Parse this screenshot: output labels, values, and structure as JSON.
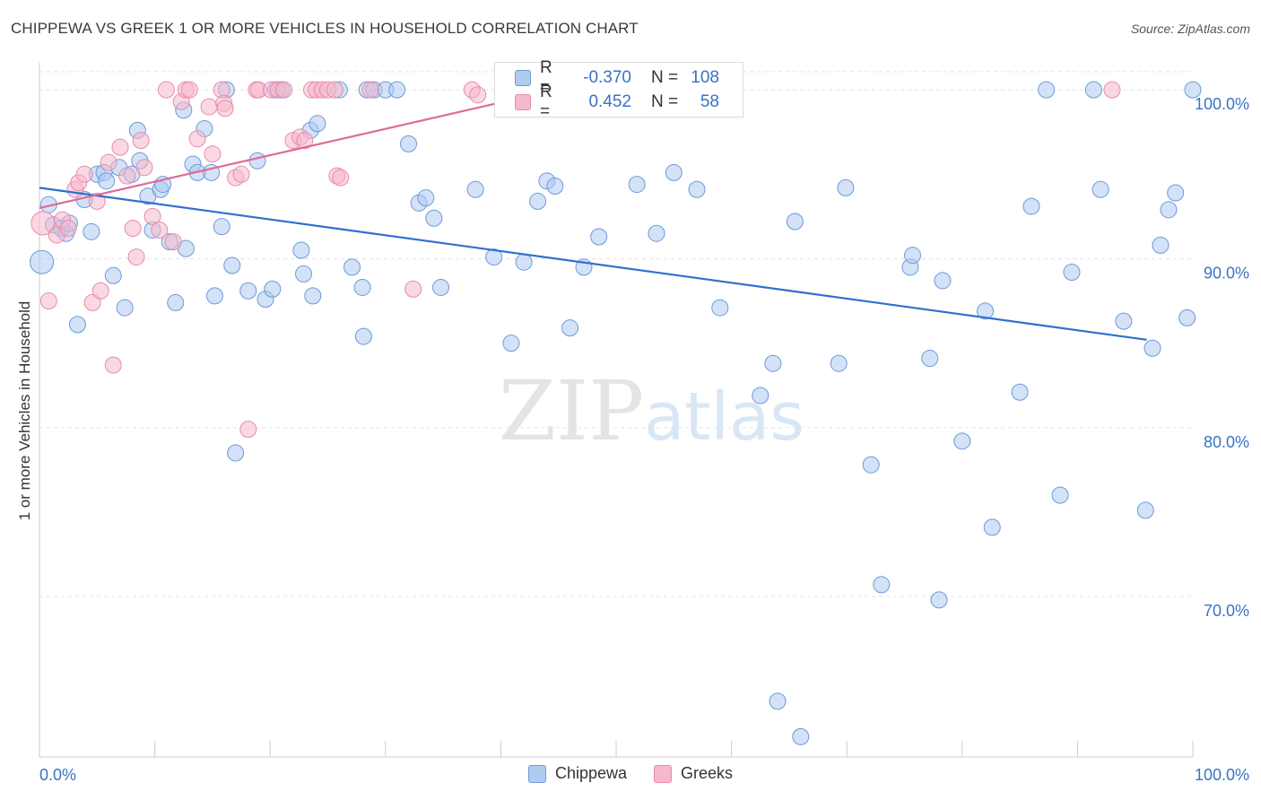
{
  "title": "CHIPPEWA VS GREEK 1 OR MORE VEHICLES IN HOUSEHOLD CORRELATION CHART",
  "source": "Source: ZipAtlas.com",
  "watermark": {
    "zip": "ZIP",
    "atlas": "atlas"
  },
  "colors": {
    "chippewa_fill": "#aecbf0",
    "chippewa_stroke": "#6b9ad8",
    "chippewa_line": "#2f6fd0",
    "greeks_fill": "#f5b8cc",
    "greeks_stroke": "#e88aab",
    "greeks_line": "#e06a95",
    "tick_label": "#3a72c4",
    "grid": "#e3e3e3"
  },
  "legend": {
    "rows": [
      {
        "r_label": "R =",
        "r_value": "-0.370",
        "n_label": "N =",
        "n_value": "108"
      },
      {
        "r_label": "R =",
        "r_value": "0.452",
        "n_label": "N =",
        "n_value": "58"
      }
    ]
  },
  "bottom_legend": [
    "Chippewa",
    "Greeks"
  ],
  "chart_data": {
    "type": "scatter",
    "title": "CHIPPEWA VS GREEK 1 OR MORE VEHICLES IN HOUSEHOLD CORRELATION CHART",
    "xlabel": "",
    "ylabel": "1 or more Vehicles in Household",
    "xlim": [
      0,
      100
    ],
    "ylim": [
      60.5,
      101.6
    ],
    "x_tick_labels": [
      "0.0%",
      "100.0%"
    ],
    "y_ticks": [
      70,
      80,
      90,
      100
    ],
    "y_tick_labels": [
      "70.0%",
      "80.0%",
      "90.0%",
      "100.0%"
    ],
    "grid": true,
    "legend_position": "top-center",
    "series": [
      {
        "name": "Chippewa",
        "trend": [
          [
            0,
            94.2
          ],
          [
            96,
            85.2
          ]
        ],
        "points": [
          [
            0.2,
            89.8
          ],
          [
            0.8,
            93.2
          ],
          [
            1.2,
            92.0
          ],
          [
            1.9,
            91.8
          ],
          [
            2.3,
            91.5
          ],
          [
            2.6,
            92.1
          ],
          [
            3.3,
            86.1
          ],
          [
            3.9,
            93.5
          ],
          [
            4.5,
            91.6
          ],
          [
            5.0,
            95.0
          ],
          [
            5.6,
            95.1
          ],
          [
            5.8,
            94.6
          ],
          [
            6.4,
            89.0
          ],
          [
            6.9,
            95.4
          ],
          [
            7.4,
            87.1
          ],
          [
            8.0,
            95.0
          ],
          [
            8.5,
            97.6
          ],
          [
            8.7,
            95.8
          ],
          [
            9.4,
            93.7
          ],
          [
            9.8,
            91.7
          ],
          [
            10.5,
            94.1
          ],
          [
            10.7,
            94.4
          ],
          [
            11.3,
            91.0
          ],
          [
            11.8,
            87.4
          ],
          [
            12.5,
            98.8
          ],
          [
            12.7,
            90.6
          ],
          [
            13.3,
            95.6
          ],
          [
            13.7,
            95.1
          ],
          [
            14.3,
            97.7
          ],
          [
            14.9,
            95.1
          ],
          [
            15.2,
            87.8
          ],
          [
            15.8,
            91.9
          ],
          [
            16.2,
            100.0
          ],
          [
            16.7,
            89.6
          ],
          [
            17.0,
            78.5
          ],
          [
            18.1,
            88.1
          ],
          [
            18.9,
            95.8
          ],
          [
            19.6,
            87.6
          ],
          [
            20.2,
            88.2
          ],
          [
            20.5,
            100.0
          ],
          [
            21.0,
            100.0
          ],
          [
            22.7,
            90.5
          ],
          [
            22.9,
            89.1
          ],
          [
            23.5,
            97.6
          ],
          [
            23.7,
            87.8
          ],
          [
            24.1,
            98.0
          ],
          [
            26.0,
            100.0
          ],
          [
            27.1,
            89.5
          ],
          [
            28.0,
            88.3
          ],
          [
            28.1,
            85.4
          ],
          [
            28.4,
            100.0
          ],
          [
            29.0,
            100.0
          ],
          [
            30.0,
            100.0
          ],
          [
            31.0,
            100.0
          ],
          [
            32.0,
            96.8
          ],
          [
            32.9,
            93.3
          ],
          [
            33.5,
            93.6
          ],
          [
            34.2,
            92.4
          ],
          [
            34.8,
            88.3
          ],
          [
            37.8,
            94.1
          ],
          [
            39.4,
            90.1
          ],
          [
            40.9,
            85.0
          ],
          [
            42.0,
            89.8
          ],
          [
            43.2,
            93.4
          ],
          [
            44.0,
            94.6
          ],
          [
            44.7,
            94.3
          ],
          [
            45.2,
            100.0
          ],
          [
            46.0,
            85.9
          ],
          [
            47.2,
            89.5
          ],
          [
            48.5,
            91.3
          ],
          [
            50.0,
            100.0
          ],
          [
            51.8,
            94.4
          ],
          [
            53.5,
            91.5
          ],
          [
            55.0,
            95.1
          ],
          [
            57.0,
            94.1
          ],
          [
            59.0,
            87.1
          ],
          [
            62.5,
            81.9
          ],
          [
            63.6,
            83.8
          ],
          [
            64.0,
            63.8
          ],
          [
            65.5,
            92.2
          ],
          [
            66.0,
            61.7
          ],
          [
            69.3,
            83.8
          ],
          [
            69.9,
            94.2
          ],
          [
            72.1,
            77.8
          ],
          [
            73.0,
            70.7
          ],
          [
            75.5,
            89.5
          ],
          [
            75.7,
            90.2
          ],
          [
            77.2,
            84.1
          ],
          [
            78.0,
            69.8
          ],
          [
            78.3,
            88.7
          ],
          [
            80.0,
            79.2
          ],
          [
            82.0,
            86.9
          ],
          [
            82.6,
            74.1
          ],
          [
            85.0,
            82.1
          ],
          [
            86.0,
            93.1
          ],
          [
            87.3,
            100.0
          ],
          [
            88.5,
            76.0
          ],
          [
            89.5,
            89.2
          ],
          [
            91.4,
            100.0
          ],
          [
            92.0,
            94.1
          ],
          [
            94.0,
            86.3
          ],
          [
            95.9,
            75.1
          ],
          [
            96.5,
            84.7
          ],
          [
            97.2,
            90.8
          ],
          [
            97.9,
            92.9
          ],
          [
            98.5,
            93.9
          ],
          [
            99.5,
            86.5
          ],
          [
            100.0,
            100.0
          ]
        ]
      },
      {
        "name": "Greeks",
        "trend": [
          [
            0,
            93.0
          ],
          [
            48,
            100.5
          ]
        ],
        "points": [
          [
            0.3,
            92.1
          ],
          [
            0.8,
            87.5
          ],
          [
            1.5,
            91.4
          ],
          [
            2.0,
            92.3
          ],
          [
            2.5,
            91.8
          ],
          [
            3.1,
            94.1
          ],
          [
            3.4,
            94.5
          ],
          [
            3.9,
            95.0
          ],
          [
            4.6,
            87.4
          ],
          [
            5.0,
            93.4
          ],
          [
            5.3,
            88.1
          ],
          [
            6.0,
            95.7
          ],
          [
            6.4,
            83.7
          ],
          [
            7.0,
            96.6
          ],
          [
            7.6,
            94.9
          ],
          [
            8.1,
            91.8
          ],
          [
            8.4,
            90.1
          ],
          [
            8.8,
            97.0
          ],
          [
            9.1,
            95.4
          ],
          [
            9.8,
            92.5
          ],
          [
            10.4,
            91.7
          ],
          [
            11.0,
            100.0
          ],
          [
            11.6,
            91.0
          ],
          [
            12.3,
            99.3
          ],
          [
            12.7,
            100.0
          ],
          [
            13.0,
            100.0
          ],
          [
            13.7,
            97.1
          ],
          [
            14.7,
            99.0
          ],
          [
            15.0,
            96.2
          ],
          [
            15.8,
            100.0
          ],
          [
            16.0,
            99.2
          ],
          [
            16.1,
            98.9
          ],
          [
            17.0,
            94.8
          ],
          [
            17.5,
            95.0
          ],
          [
            18.1,
            79.9
          ],
          [
            18.8,
            100.0
          ],
          [
            19.0,
            100.0
          ],
          [
            20.1,
            100.0
          ],
          [
            20.7,
            100.0
          ],
          [
            21.2,
            100.0
          ],
          [
            22.0,
            97.0
          ],
          [
            22.6,
            97.2
          ],
          [
            23.0,
            97.0
          ],
          [
            23.6,
            100.0
          ],
          [
            24.0,
            100.0
          ],
          [
            24.5,
            100.0
          ],
          [
            25.0,
            100.0
          ],
          [
            25.6,
            100.0
          ],
          [
            25.8,
            94.9
          ],
          [
            26.1,
            94.8
          ],
          [
            28.7,
            100.0
          ],
          [
            32.4,
            88.2
          ],
          [
            37.5,
            100.0
          ],
          [
            38.0,
            99.7
          ],
          [
            46.0,
            100.0
          ],
          [
            48.0,
            100.0
          ],
          [
            58.0,
            100.0
          ],
          [
            93.0,
            100.0
          ]
        ]
      }
    ]
  }
}
